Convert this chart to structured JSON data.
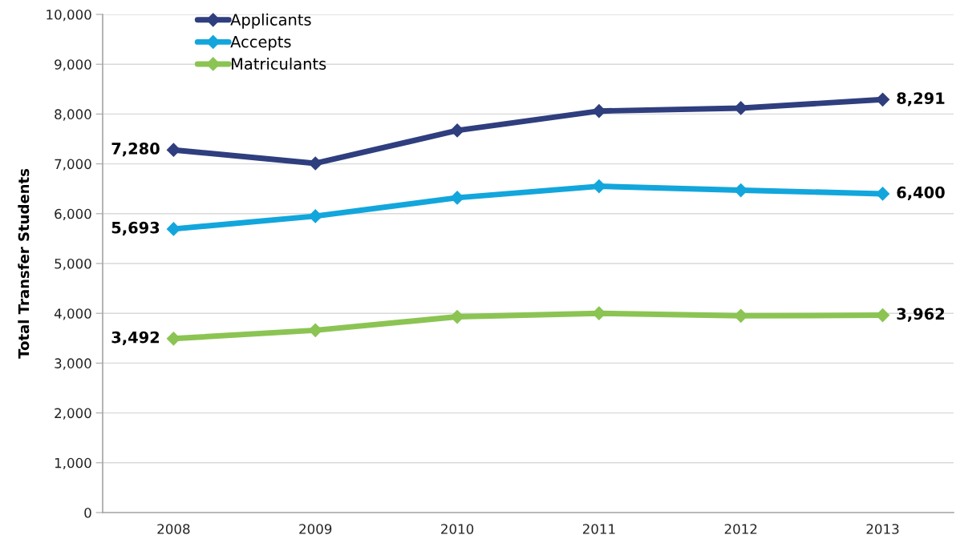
{
  "chart_data": {
    "type": "line",
    "ylabel": "Total Transfer Students",
    "categories": [
      "2008",
      "2009",
      "2010",
      "2011",
      "2012",
      "2013"
    ],
    "series": [
      {
        "name": "Applicants",
        "color": "#2f3e7e",
        "values": [
          7280,
          7010,
          7670,
          8060,
          8120,
          8291
        ],
        "value_labels": [
          "7,280",
          null,
          null,
          null,
          null,
          "8,291"
        ]
      },
      {
        "name": "Accepts",
        "color": "#12a6dc",
        "values": [
          5693,
          5950,
          6320,
          6550,
          6470,
          6400
        ],
        "value_labels": [
          "5,693",
          null,
          null,
          null,
          null,
          "6,400"
        ]
      },
      {
        "name": "Matriculants",
        "color": "#8bc453",
        "values": [
          3492,
          3660,
          3930,
          4000,
          3950,
          3962
        ],
        "value_labels": [
          "3,492",
          null,
          null,
          null,
          null,
          "3,962"
        ]
      }
    ],
    "ylim": [
      0,
      10000
    ],
    "yticks": [
      0,
      {
        "value": 1000,
        "label": "1,000"
      },
      {
        "value": 2000,
        "label": "2,000"
      },
      {
        "value": 3000,
        "label": "3,000"
      },
      {
        "value": 4000,
        "label": "4,000"
      },
      {
        "value": 5000,
        "label": "5,000"
      },
      {
        "value": 6000,
        "label": "6,000"
      },
      {
        "value": 7000,
        "label": "7,000"
      },
      {
        "value": 8000,
        "label": "8,000"
      },
      {
        "value": 9000,
        "label": "9,000"
      },
      {
        "value": 10000,
        "label": "10,000"
      }
    ],
    "grid": "y",
    "legend": "top left",
    "marker": "diamond",
    "line_style": "solid"
  }
}
